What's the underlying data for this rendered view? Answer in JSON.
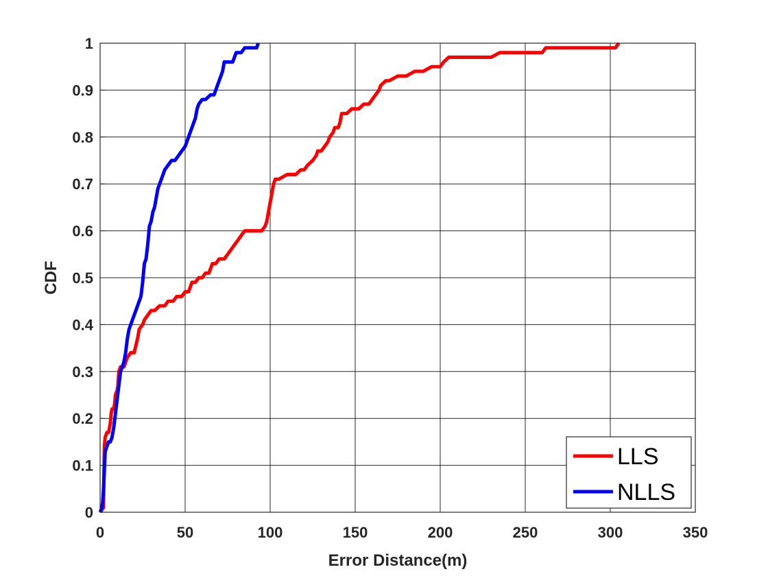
{
  "chart_data": {
    "type": "line",
    "title": "",
    "xlabel": "Error Distance(m)",
    "ylabel": "CDF",
    "xlim": [
      0,
      350
    ],
    "ylim": [
      0,
      1
    ],
    "xticks": [
      0,
      50,
      100,
      150,
      200,
      250,
      300,
      350
    ],
    "yticks": [
      0,
      0.1,
      0.2,
      0.3,
      0.4,
      0.5,
      0.6,
      0.7,
      0.8,
      0.9,
      1
    ],
    "xtick_labels": [
      "0",
      "50",
      "100",
      "150",
      "200",
      "250",
      "300",
      "350"
    ],
    "ytick_labels": [
      "0",
      "0.1",
      "0.2",
      "0.3",
      "0.4",
      "0.5",
      "0.6",
      "0.7",
      "0.8",
      "0.9",
      "1"
    ],
    "grid": true,
    "legend_position": "bottom-right",
    "series": [
      {
        "name": "LLS",
        "color": "#ff0000",
        "x": [
          0,
          2,
          2,
          2.5,
          3,
          4,
          5,
          6,
          6.5,
          7,
          8,
          8.5,
          9,
          10,
          10.5,
          11,
          12,
          14,
          16,
          18,
          20,
          22,
          23,
          25,
          26,
          28,
          30,
          32,
          35,
          38,
          40,
          43,
          45,
          48,
          50,
          52,
          54,
          56,
          58,
          60,
          62,
          64,
          66,
          68,
          70,
          73,
          75,
          77,
          79,
          81,
          83,
          85,
          90,
          95,
          97,
          98,
          99,
          100,
          101,
          102,
          103,
          105,
          110,
          115,
          118,
          120,
          122,
          125,
          127,
          128,
          130,
          132,
          134,
          135,
          137,
          138,
          140,
          141,
          142,
          145,
          148,
          152,
          155,
          158,
          160,
          162,
          164,
          165,
          168,
          170,
          175,
          180,
          185,
          190,
          195,
          200,
          202,
          205,
          210,
          220,
          230,
          235,
          240,
          250,
          260,
          262,
          265,
          270,
          280,
          290,
          300,
          303,
          305
        ],
        "y": [
          0,
          0.01,
          0.03,
          0.14,
          0.16,
          0.17,
          0.17,
          0.19,
          0.21,
          0.22,
          0.22,
          0.23,
          0.25,
          0.26,
          0.27,
          0.3,
          0.31,
          0.31,
          0.33,
          0.34,
          0.34,
          0.37,
          0.39,
          0.4,
          0.41,
          0.42,
          0.43,
          0.43,
          0.44,
          0.44,
          0.45,
          0.45,
          0.46,
          0.46,
          0.47,
          0.47,
          0.49,
          0.49,
          0.5,
          0.5,
          0.51,
          0.51,
          0.53,
          0.53,
          0.54,
          0.54,
          0.55,
          0.56,
          0.57,
          0.58,
          0.59,
          0.6,
          0.6,
          0.6,
          0.61,
          0.62,
          0.64,
          0.66,
          0.68,
          0.7,
          0.71,
          0.71,
          0.72,
          0.72,
          0.73,
          0.73,
          0.74,
          0.75,
          0.76,
          0.77,
          0.77,
          0.78,
          0.79,
          0.8,
          0.81,
          0.82,
          0.82,
          0.83,
          0.85,
          0.85,
          0.86,
          0.86,
          0.87,
          0.87,
          0.88,
          0.89,
          0.9,
          0.91,
          0.92,
          0.92,
          0.93,
          0.93,
          0.94,
          0.94,
          0.95,
          0.95,
          0.96,
          0.97,
          0.97,
          0.97,
          0.97,
          0.98,
          0.98,
          0.98,
          0.98,
          0.99,
          0.99,
          0.99,
          0.99,
          0.99,
          0.99,
          0.99,
          1.0
        ]
      },
      {
        "name": "NLLS",
        "color": "#0000ff",
        "x": [
          0,
          1,
          1.5,
          2,
          2.5,
          3,
          4,
          5,
          6,
          7,
          8,
          9,
          10,
          11,
          12,
          13,
          14,
          15,
          16,
          17,
          18,
          19,
          20,
          21,
          22,
          23,
          24,
          25,
          26,
          27,
          28,
          29,
          30,
          31,
          32,
          33,
          34,
          35,
          36,
          37,
          38,
          40,
          42,
          44,
          46,
          48,
          50,
          51,
          52,
          53,
          54,
          55,
          56,
          57,
          58,
          60,
          62,
          65,
          67,
          68,
          69,
          70,
          71,
          72,
          73,
          75,
          77,
          78,
          79,
          80,
          81,
          82,
          83,
          85,
          87,
          90,
          92,
          93
        ],
        "y": [
          0,
          0.01,
          0.02,
          0.05,
          0.09,
          0.13,
          0.14,
          0.15,
          0.15,
          0.16,
          0.18,
          0.21,
          0.24,
          0.27,
          0.3,
          0.31,
          0.32,
          0.34,
          0.37,
          0.39,
          0.4,
          0.41,
          0.42,
          0.43,
          0.44,
          0.45,
          0.46,
          0.49,
          0.53,
          0.54,
          0.57,
          0.61,
          0.62,
          0.64,
          0.65,
          0.67,
          0.69,
          0.7,
          0.71,
          0.72,
          0.73,
          0.74,
          0.75,
          0.75,
          0.76,
          0.77,
          0.78,
          0.79,
          0.8,
          0.81,
          0.82,
          0.83,
          0.84,
          0.86,
          0.87,
          0.88,
          0.88,
          0.89,
          0.89,
          0.9,
          0.91,
          0.92,
          0.93,
          0.94,
          0.96,
          0.96,
          0.96,
          0.96,
          0.97,
          0.98,
          0.98,
          0.98,
          0.98,
          0.99,
          0.99,
          0.99,
          0.99,
          1.0
        ]
      }
    ]
  }
}
